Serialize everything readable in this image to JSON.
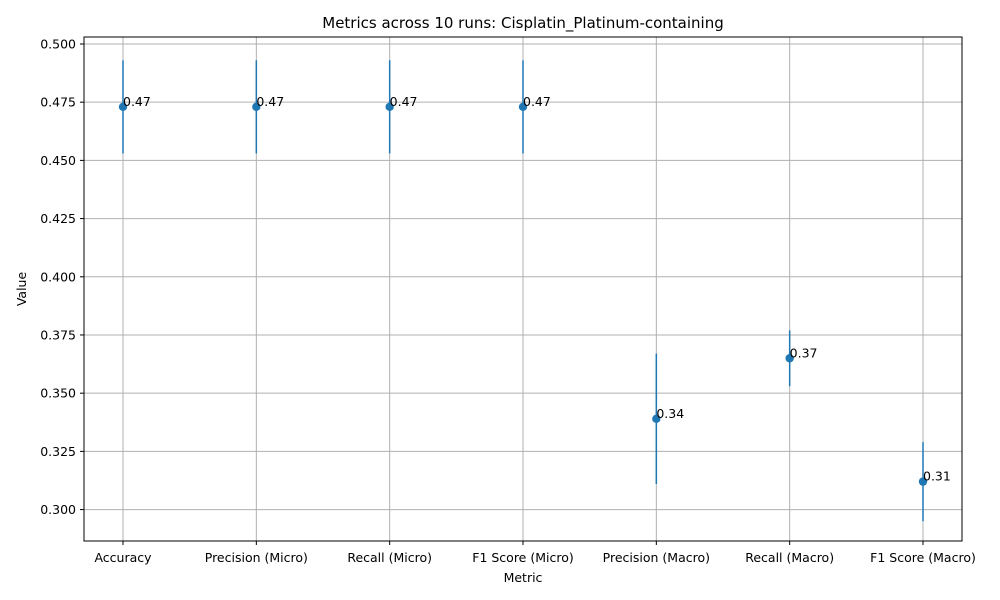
{
  "chart_data": {
    "type": "scatter",
    "title": "Metrics across 10 runs: Cisplatin_Platinum-containing",
    "xlabel": "Metric",
    "ylabel": "Value",
    "categories": [
      "Accuracy",
      "Precision (Micro)",
      "Recall (Micro)",
      "F1 Score (Micro)",
      "Precision (Macro)",
      "Recall (Macro)",
      "F1 Score (Macro)"
    ],
    "values": [
      0.473,
      0.473,
      0.473,
      0.473,
      0.339,
      0.365,
      0.312
    ],
    "error": [
      0.02,
      0.02,
      0.02,
      0.02,
      0.028,
      0.012,
      0.017
    ],
    "data_labels": [
      "0.47",
      "0.47",
      "0.47",
      "0.47",
      "0.34",
      "0.37",
      "0.31"
    ],
    "ylim": [
      0.2865,
      0.503
    ],
    "yticks": [
      0.3,
      0.325,
      0.35,
      0.375,
      0.4,
      0.425,
      0.45,
      0.475,
      0.5
    ],
    "ytick_labels": [
      "0.300",
      "0.325",
      "0.350",
      "0.375",
      "0.400",
      "0.425",
      "0.450",
      "0.475",
      "0.500"
    ],
    "grid": true,
    "marker_color": "#1f77b4",
    "error_bar_color": "#1f77b4",
    "grid_color": "#b0b0b0"
  }
}
